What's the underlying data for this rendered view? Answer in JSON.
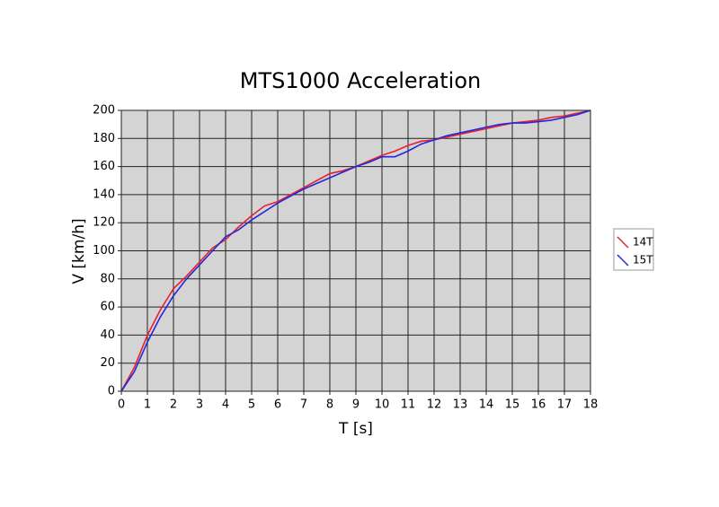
{
  "chart_data": {
    "type": "line",
    "title": "MTS1000 Acceleration",
    "x_label": "T [s]",
    "y_label": "V [km/h]",
    "x": [
      0,
      0.5,
      1,
      1.5,
      2,
      2.5,
      3,
      3.5,
      4,
      4.5,
      5,
      5.5,
      6,
      6.5,
      7,
      7.5,
      8,
      8.5,
      9,
      9.5,
      10,
      10.5,
      11,
      11.5,
      12,
      12.5,
      13,
      13.5,
      14,
      14.5,
      15,
      15.5,
      16,
      16.5,
      17,
      17.5,
      18
    ],
    "series": [
      {
        "name": "14T",
        "color": "#e8202a",
        "values": [
          0,
          17,
          40,
          58,
          73,
          82,
          92,
          102,
          108,
          117,
          125,
          132,
          135,
          140,
          145,
          150,
          155,
          157,
          160,
          164,
          168,
          171,
          175,
          178,
          179,
          181,
          183,
          185,
          187,
          189,
          191,
          192,
          193,
          195,
          196,
          198,
          200
        ]
      },
      {
        "name": "15T",
        "color": "#2626e0",
        "values": [
          0,
          14,
          35,
          53,
          68,
          80,
          90,
          100,
          110,
          115,
          122,
          128,
          134,
          139,
          144,
          148,
          152,
          156,
          160,
          163,
          167,
          167,
          171,
          176,
          179,
          182,
          184,
          186,
          188,
          190,
          191,
          191,
          192,
          193,
          195,
          197,
          200
        ]
      }
    ],
    "xlim": [
      0,
      18
    ],
    "xticks": [
      0,
      1,
      2,
      3,
      4,
      5,
      6,
      7,
      8,
      9,
      10,
      11,
      12,
      13,
      14,
      15,
      16,
      17,
      18
    ],
    "ylim": [
      0,
      200
    ],
    "yticks": [
      0,
      20,
      40,
      60,
      80,
      100,
      120,
      140,
      160,
      180,
      200
    ],
    "grid": true,
    "legend": "right"
  }
}
